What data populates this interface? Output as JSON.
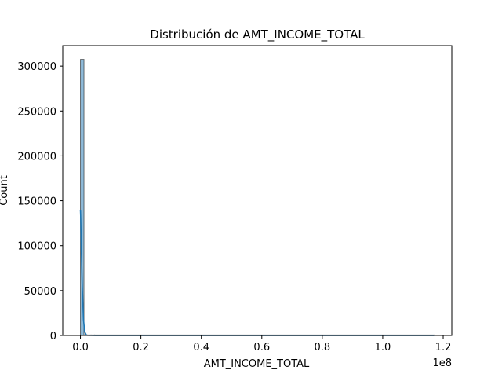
{
  "chart_data": {
    "type": "bar",
    "title": "Distribución de AMT_INCOME_TOTAL",
    "xlabel": "AMT_INCOME_TOTAL",
    "ylabel": "Count",
    "x_offset_label": "1e8",
    "x_scale_factor": 100000000,
    "xlim": [
      -5850000,
      122850000
    ],
    "ylim": [
      0,
      322875
    ],
    "xticks": [
      0,
      20000000,
      40000000,
      60000000,
      80000000,
      100000000,
      120000000
    ],
    "xtick_labels": [
      "0.0",
      "0.2",
      "0.4",
      "0.6",
      "0.8",
      "1.0",
      "1.2"
    ],
    "yticks": [
      0,
      50000,
      100000,
      150000,
      200000,
      250000,
      300000
    ],
    "ytick_labels": [
      "0",
      "50000",
      "100000",
      "150000",
      "200000",
      "250000",
      "300000"
    ],
    "grid": false,
    "bar_color": "#1f77b4",
    "bins": [
      {
        "x0": 0,
        "x1": 1170000,
        "count": 307500
      },
      {
        "x0": 1170000,
        "x1": 2340000,
        "count": 9
      },
      {
        "x0": 2340000,
        "x1": 3510000,
        "count": 2
      },
      {
        "x0": 3510000,
        "x1": 4680000,
        "count": 1
      },
      {
        "x0": 4680000,
        "x1": 117000000,
        "count": 1
      }
    ],
    "kde": {
      "x": [
        0,
        100000,
        300000,
        600000,
        1000000,
        1400000,
        2000000,
        5000000,
        117000000
      ],
      "y": [
        140000,
        130000,
        95000,
        55000,
        18000,
        4000,
        300,
        0,
        0
      ]
    }
  }
}
